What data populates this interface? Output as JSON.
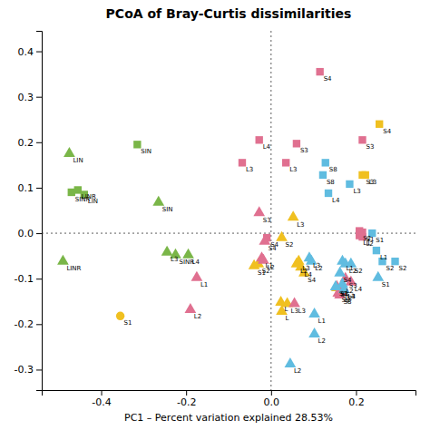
{
  "chart_data": {
    "type": "scatter",
    "title": "PCoA of Bray-Curtis dissimilarities",
    "xlabel": "PC1 – Percent variation explained 28.53%",
    "xlim": [
      -0.54,
      0.34
    ],
    "ylim": [
      -0.345,
      0.445
    ],
    "xticks": [
      -0.4,
      -0.2,
      {
        "value": 0.0,
        "label": "0.0"
      },
      0.2
    ],
    "yticks": [
      -0.3,
      -0.2,
      -0.1,
      {
        "value": 0.0,
        "label": "0.0"
      },
      0.1,
      0.2,
      0.3,
      0.4
    ],
    "reference_lines": {
      "x": [
        0
      ],
      "y": [
        0
      ]
    },
    "series": [
      {
        "color": "#7ab648",
        "marker": "triangle",
        "x": [
          -0.475
        ],
        "values": [
          0.175
        ],
        "labels": [
          "LIN"
        ]
      },
      {
        "color": "#7ab648",
        "marker": "square",
        "x": [
          -0.47,
          -0.455,
          -0.44,
          -0.315
        ],
        "values": [
          0.09,
          0.095,
          0.085,
          0.195
        ],
        "labels": [
          "SINR",
          "LINR",
          "LIN",
          "SIN"
        ]
      },
      {
        "color": "#7ab648",
        "marker": "triangle",
        "x": [
          -0.265,
          -0.49,
          -0.245,
          -0.225,
          -0.195
        ],
        "values": [
          0.068,
          -0.062,
          -0.042,
          -0.048,
          -0.048
        ],
        "labels": [
          "SIN",
          "LINR",
          "L3",
          "SINR",
          "L4"
        ]
      },
      {
        "color": "#f0c020",
        "marker": "circle",
        "x": [
          -0.355
        ],
        "values": [
          -0.182
        ],
        "labels": [
          "S1"
        ]
      },
      {
        "color": "#f0c020",
        "marker": "triangle",
        "x": [
          -0.04,
          -0.03,
          0.025,
          0.052,
          0.06,
          0.065,
          0.07,
          0.023,
          0.038,
          0.025,
          0.078
        ],
        "values": [
          -0.072,
          -0.068,
          -0.01,
          0.035,
          -0.068,
          -0.062,
          -0.075,
          -0.152,
          -0.155,
          -0.172,
          -0.088
        ],
        "labels": [
          "S1",
          "S2",
          "S2",
          "L3",
          "L2",
          "L3",
          "L4",
          "L",
          "L3",
          "L",
          "S4"
        ]
      },
      {
        "color": "#f0c020",
        "marker": "square",
        "x": [
          0.255,
          0.215,
          0.222
        ],
        "values": [
          0.24,
          0.128,
          0.128
        ],
        "labels": [
          "S4",
          "S3",
          "L3"
        ]
      },
      {
        "color": "#f0c020",
        "marker": "triangle",
        "x": [
          0.155
        ],
        "values": [
          -0.12
        ],
        "labels": [
          "S4"
        ]
      },
      {
        "color": "#e07090",
        "marker": "square",
        "x": [
          -0.028,
          -0.068,
          0.06,
          0.115
        ],
        "values": [
          0.205,
          0.155,
          0.197,
          0.355
        ],
        "labels": [
          "L4",
          "L3",
          "S3",
          "S4"
        ]
      },
      {
        "color": "#e07090",
        "marker": "triangle",
        "x": [
          -0.028
        ],
        "values": [
          0.045
        ],
        "labels": [
          "S3"
        ]
      },
      {
        "color": "#e07090",
        "marker": "square",
        "x": [
          -0.01
        ],
        "values": [
          -0.01
        ],
        "labels": [
          "S4"
        ]
      },
      {
        "color": "#e07090",
        "marker": "triangle",
        "x": [
          -0.015,
          -0.022,
          -0.018,
          -0.175,
          -0.19
        ],
        "values": [
          -0.018,
          -0.055,
          -0.06,
          -0.098,
          -0.168
        ],
        "labels": [
          "S4",
          "L1",
          "L2",
          "L1",
          "L2"
        ]
      },
      {
        "color": "#e07090",
        "marker": "square",
        "x": [
          0.035
        ],
        "values": [
          0.155
        ],
        "labels": [
          "L3"
        ]
      },
      {
        "color": "#e07090",
        "marker": "triangle",
        "x": [
          0.055
        ],
        "values": [
          -0.155
        ],
        "labels": [
          "L3"
        ]
      },
      {
        "color": "#e07090",
        "marker": "square",
        "x": [
          0.215,
          0.208,
          0.215,
          0.208,
          0.215
        ],
        "values": [
          0.205,
          0.005,
          0.002,
          -0.005,
          -0.008
        ],
        "labels": [
          "S3",
          "S2",
          "S1",
          "L1",
          "L2"
        ]
      },
      {
        "color": "#e07090",
        "marker": "triangle",
        "x": [
          0.175,
          0.188,
          0.155,
          0.172,
          0.165,
          0.158,
          0.162
        ],
        "values": [
          -0.1,
          -0.108,
          -0.118,
          -0.124,
          -0.128,
          -0.132,
          -0.136
        ],
        "labels": [
          "S3",
          "L4",
          "S1",
          "L3",
          "L2",
          "S8",
          "S8"
        ]
      },
      {
        "color": "#60bce0",
        "marker": "square",
        "x": [
          0.128,
          0.122,
          0.185,
          0.135
        ],
        "values": [
          0.155,
          0.128,
          0.108,
          0.088
        ],
        "labels": [
          "S8",
          "S8",
          "L3",
          "L4"
        ]
      },
      {
        "color": "#60bce0",
        "marker": "triangle",
        "x": [
          0.09,
          0.095,
          0.168,
          0.175,
          0.162,
          0.168,
          0.152,
          0.172,
          0.188,
          0.102,
          0.102,
          0.045
        ],
        "values": [
          -0.055,
          -0.062,
          -0.062,
          -0.068,
          -0.088,
          -0.112,
          -0.118,
          -0.124,
          -0.068,
          -0.178,
          -0.222,
          -0.288
        ],
        "labels": [
          "L3",
          "L2",
          "L1",
          "L2",
          "S4",
          "L2",
          "S1",
          "L4",
          "S2",
          "L1",
          "L2",
          "L2"
        ]
      },
      {
        "color": "#60bce0",
        "marker": "square",
        "x": [
          0.238,
          0.248,
          0.262,
          0.292
        ],
        "values": [
          0.0,
          -0.038,
          -0.062,
          -0.062
        ],
        "labels": [
          "S1",
          "L1",
          "S2",
          "S2"
        ]
      },
      {
        "color": "#60bce0",
        "marker": "triangle",
        "x": [
          0.252
        ],
        "values": [
          -0.098
        ],
        "labels": [
          "S1"
        ]
      }
    ]
  }
}
